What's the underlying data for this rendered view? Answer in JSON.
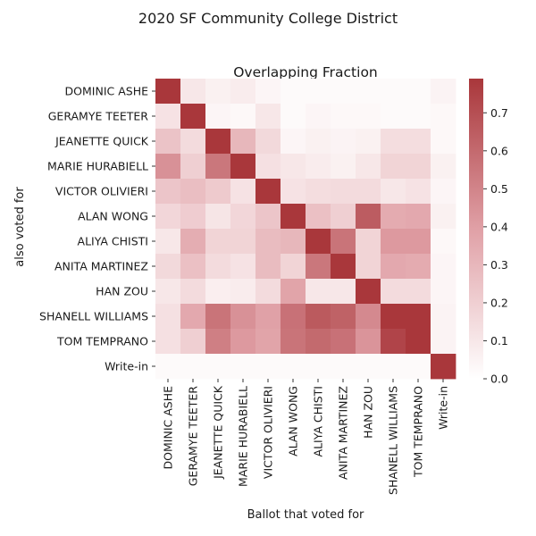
{
  "chart_data": {
    "type": "heatmap",
    "suptitle": "2020 SF Community College District",
    "title": "Overlapping Fraction",
    "xlabel": "Ballot that voted for",
    "ylabel": "also voted for",
    "labels": [
      "DOMINIC ASHE",
      "GERAMYE TEETER",
      "JEANETTE QUICK",
      "MARIE HURABIELL",
      "VICTOR OLIVIERI",
      "ALAN WONG",
      "ALIYA CHISTI",
      "ANITA MARTINEZ",
      "HAN ZOU",
      "SHANELL WILLIAMS",
      "TOM TEMPRANO",
      "Write-in"
    ],
    "matrix": [
      [
        0.79,
        0.1,
        0.06,
        0.08,
        0.04,
        0.02,
        0.02,
        0.02,
        0.02,
        0.02,
        0.02,
        0.05
      ],
      [
        0.12,
        0.79,
        0.04,
        0.03,
        0.1,
        0.02,
        0.04,
        0.03,
        0.03,
        0.02,
        0.02,
        0.03
      ],
      [
        0.25,
        0.15,
        0.79,
        0.3,
        0.16,
        0.04,
        0.06,
        0.05,
        0.06,
        0.14,
        0.14,
        0.03
      ],
      [
        0.45,
        0.2,
        0.55,
        0.79,
        0.13,
        0.1,
        0.08,
        0.06,
        0.1,
        0.18,
        0.18,
        0.06
      ],
      [
        0.24,
        0.27,
        0.22,
        0.12,
        0.79,
        0.12,
        0.14,
        0.15,
        0.15,
        0.1,
        0.12,
        0.04
      ],
      [
        0.17,
        0.21,
        0.11,
        0.17,
        0.24,
        0.79,
        0.26,
        0.2,
        0.65,
        0.35,
        0.36,
        0.06
      ],
      [
        0.1,
        0.34,
        0.18,
        0.18,
        0.28,
        0.3,
        0.79,
        0.56,
        0.18,
        0.42,
        0.42,
        0.03
      ],
      [
        0.16,
        0.26,
        0.15,
        0.12,
        0.28,
        0.18,
        0.55,
        0.79,
        0.18,
        0.36,
        0.35,
        0.04
      ],
      [
        0.1,
        0.15,
        0.07,
        0.08,
        0.15,
        0.38,
        0.1,
        0.1,
        0.79,
        0.15,
        0.15,
        0.04
      ],
      [
        0.13,
        0.36,
        0.56,
        0.45,
        0.39,
        0.57,
        0.66,
        0.63,
        0.48,
        0.79,
        0.79,
        0.05
      ],
      [
        0.13,
        0.2,
        0.52,
        0.42,
        0.38,
        0.56,
        0.6,
        0.57,
        0.44,
        0.74,
        0.79,
        0.05
      ],
      [
        0.02,
        0.02,
        0.02,
        0.02,
        0.02,
        0.02,
        0.02,
        0.02,
        0.02,
        0.02,
        0.02,
        0.79
      ]
    ],
    "vmin": 0,
    "vmax": 0.79,
    "colorbar_ticks": [
      "0.0",
      "0.1",
      "0.2",
      "0.3",
      "0.4",
      "0.5",
      "0.6",
      "0.7"
    ],
    "colormap": "vlag-red-half",
    "color_low": "#ffffff",
    "color_high": "#a9373b"
  }
}
